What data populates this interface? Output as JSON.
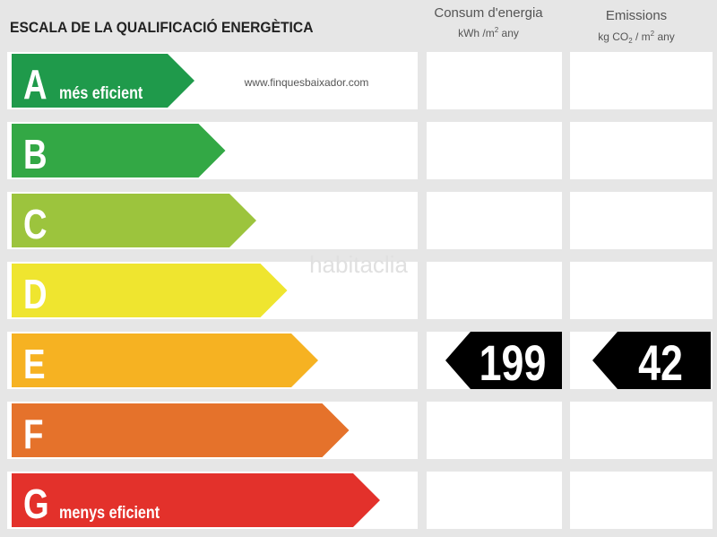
{
  "header": {
    "title": "ESCALA DE LA QUALIFICACIÓ ENERGÈTICA",
    "consumption": {
      "title": "Consum d'energia",
      "unit": [
        "kWh /m",
        "2",
        " any"
      ]
    },
    "emissions": {
      "title": "Emissions",
      "unit": [
        "kg CO",
        "2",
        " / m",
        "2",
        " any"
      ]
    }
  },
  "watermarks": [
    "www.finquesbaixador.com",
    "habitaclia"
  ],
  "rows": [
    {
      "letter": "A",
      "label": "més eficient",
      "color": "#1f9a4b"
    },
    {
      "letter": "B",
      "color": "#33a845"
    },
    {
      "letter": "C",
      "color": "#9cc43d"
    },
    {
      "letter": "D",
      "color": "#efe52f"
    },
    {
      "letter": "E",
      "color": "#f6b222",
      "consumption": 199,
      "emissions": 42
    },
    {
      "letter": "F",
      "color": "#e5722b"
    },
    {
      "letter": "G",
      "label": "menys eficient",
      "color": "#e3312b"
    }
  ]
}
